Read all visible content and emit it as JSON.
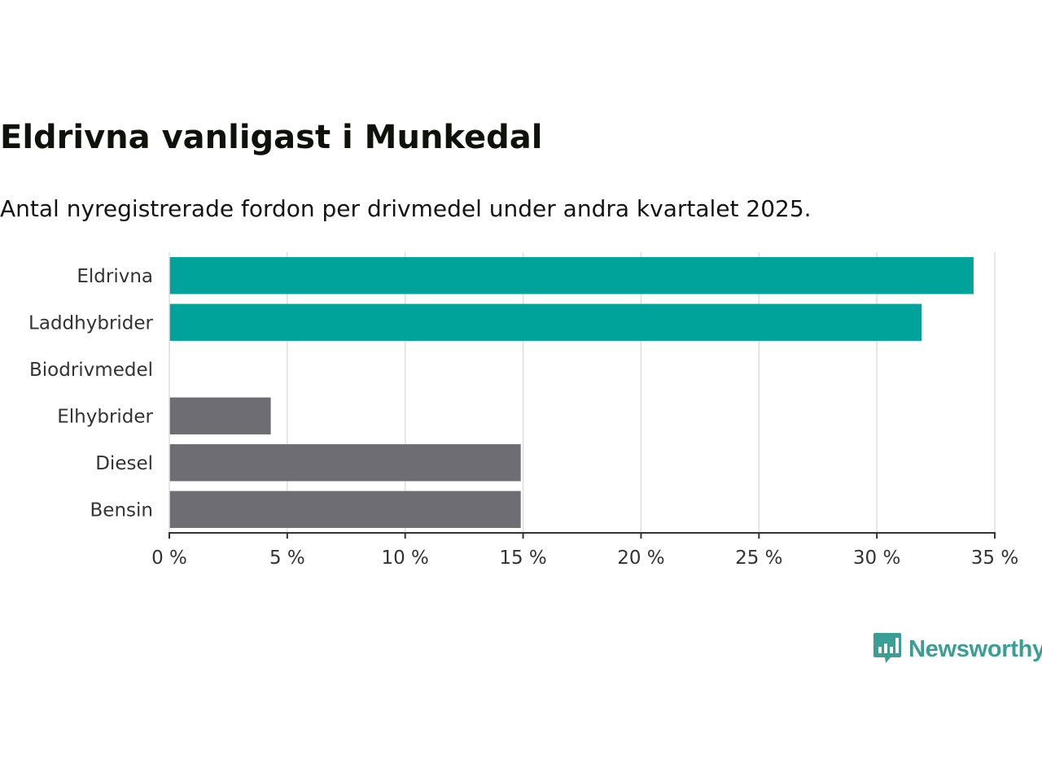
{
  "title": "Eldrivna vanligast i Munkedal",
  "subtitle": "Antal nyregistrerade fordon per drivmedel under andra kvartalet 2025.",
  "logo": {
    "text": "Newsworthy",
    "icon": "chart-speech-bubble-icon",
    "color": "#3b9e95"
  },
  "chart_data": {
    "type": "bar",
    "orientation": "horizontal",
    "categories": [
      "Eldrivna",
      "Laddhybrider",
      "Biodrivmedel",
      "Elhybrider",
      "Diesel",
      "Bensin"
    ],
    "values": [
      34.1,
      31.9,
      0,
      4.3,
      14.9,
      14.9
    ],
    "colors": [
      "#00a39a",
      "#00a39a",
      "#00a39a",
      "#6e6d73",
      "#6e6d73",
      "#6e6d73"
    ],
    "xlim": [
      0,
      35
    ],
    "xticks": [
      0,
      5,
      10,
      15,
      20,
      25,
      30,
      35
    ],
    "xtick_labels": [
      "0 %",
      "5 %",
      "10 %",
      "15 %",
      "20 %",
      "25 %",
      "30 %",
      "35 %"
    ],
    "grid": true,
    "title": "Eldrivna vanligast i Munkedal",
    "xlabel": "",
    "ylabel": ""
  }
}
